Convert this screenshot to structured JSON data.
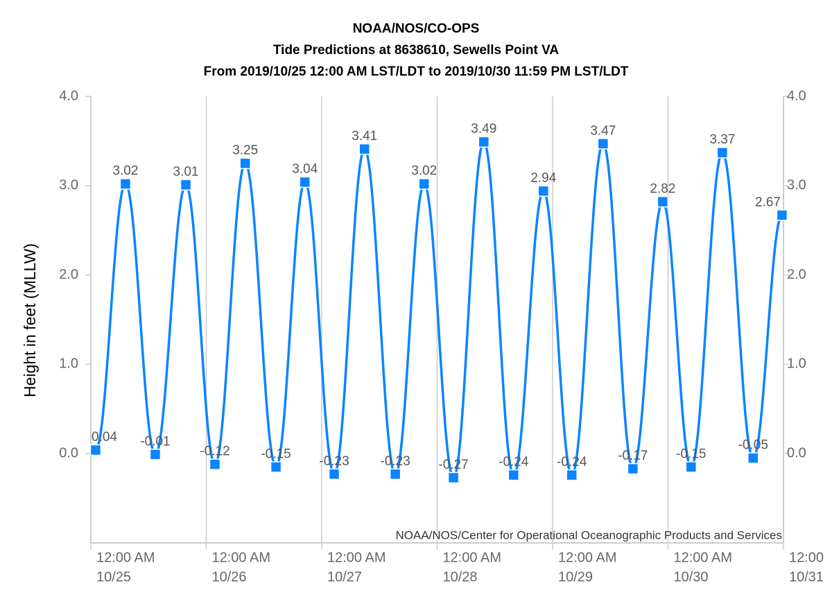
{
  "chart_data": {
    "type": "line",
    "title": [
      "NOAA/NOS/CO-OPS",
      "Tide Predictions at 8638610, Sewells Point VA",
      "From 2019/10/25 12:00 AM LST/LDT to 2019/10/30 11:59 PM LST/LDT"
    ],
    "y_label": "Height in feet (MLLW)",
    "credit": "NOAA/NOS/Center for Operational Oceanographic Products and Services",
    "x": [
      "10/25 1:00 AM",
      "10/25 7:12 AM",
      "10/25 1:24 PM",
      "10/25 7:45 PM",
      "10/26 1:48 AM",
      "10/26 8:06 AM",
      "10/26 2:30 PM",
      "10/26 8:30 PM",
      "10/27 2:36 AM",
      "10/27 8:54 AM",
      "10/27 3:18 PM",
      "10/27 9:18 PM",
      "10/28 3:24 AM",
      "10/28 9:42 AM",
      "10/28 3:54 PM",
      "10/28 10:06 PM",
      "10/29 4:00 AM",
      "10/29 10:30 AM",
      "10/29 4:42 PM",
      "10/29 10:54 PM",
      "10/30 4:48 AM",
      "10/30 11:18 AM",
      "10/30 5:42 PM",
      "10/30 11:42 PM"
    ],
    "series": [
      {
        "name": "Predictions",
        "color": "#0a84ff",
        "values": [
          0.04,
          3.02,
          -0.01,
          3.01,
          -0.12,
          3.25,
          -0.15,
          3.04,
          -0.23,
          3.41,
          -0.23,
          3.02,
          -0.27,
          3.49,
          -0.24,
          2.94,
          -0.24,
          3.47,
          -0.17,
          2.82,
          -0.15,
          3.37,
          -0.05,
          2.67
        ]
      }
    ],
    "xlim": [
      "10/25 12:00 AM",
      "10/31 12:00 AM"
    ],
    "xticks": [
      {
        "value": "10/25 12:00 AM",
        "label": [
          "12:00 AM",
          "10/25"
        ]
      },
      {
        "value": "10/26 12:00 AM",
        "label": [
          "12:00 AM",
          "10/26"
        ]
      },
      {
        "value": "10/27 12:00 AM",
        "label": [
          "12:00 AM",
          "10/27"
        ]
      },
      {
        "value": "10/28 12:00 AM",
        "label": [
          "12:00 AM",
          "10/28"
        ]
      },
      {
        "value": "10/29 12:00 AM",
        "label": [
          "12:00 AM",
          "10/29"
        ]
      },
      {
        "value": "10/30 12:00 AM",
        "label": [
          "12:00 AM",
          "10/30"
        ]
      },
      {
        "value": "10/31 12:00 AM",
        "label": [
          "12:00",
          "10/31"
        ]
      }
    ],
    "ylim": [
      -1,
      4
    ],
    "yticks": [
      {
        "value": 0,
        "label": "0.0"
      },
      {
        "value": 1,
        "label": "1.0"
      },
      {
        "value": 2,
        "label": "2.0"
      },
      {
        "value": 3,
        "label": "3.0"
      },
      {
        "value": 4,
        "label": "4.0"
      }
    ],
    "mirror_yaxis": true,
    "grid": "x"
  }
}
